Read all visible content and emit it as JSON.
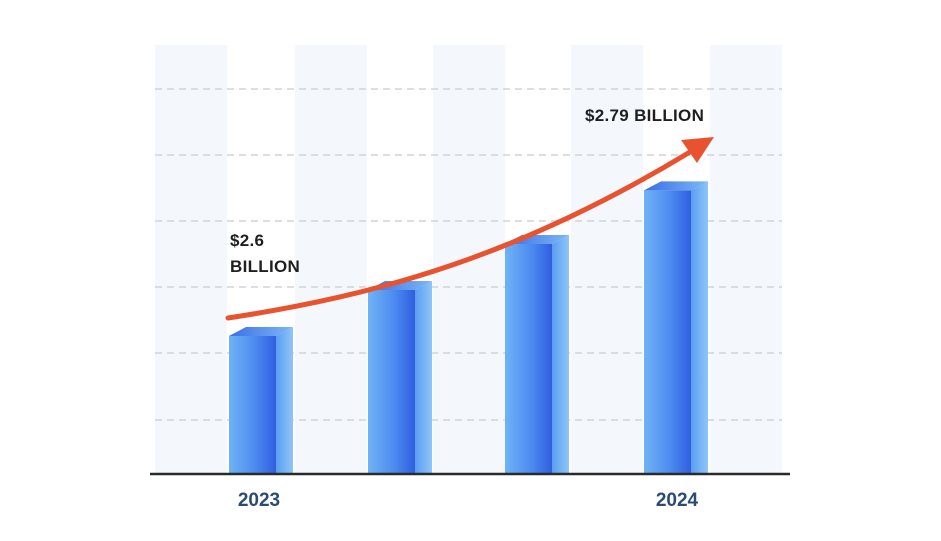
{
  "chart_data": {
    "type": "bar",
    "categories": [
      "2023",
      "",
      "",
      "2024"
    ],
    "values": [
      2.6,
      2.66,
      2.72,
      2.79
    ],
    "unit": "BILLION",
    "annotations": {
      "start_line1": "$2.6",
      "start_line2": "BILLION",
      "end": "$2.79 BILLION"
    },
    "x_tick_labels": {
      "first": "2023",
      "last": "2024"
    },
    "grid": true,
    "trend_arrow": true
  },
  "colors": {
    "bar_light": "#6fb3f5",
    "bar_dark": "#2f5fe0",
    "arrow": "#e8522f",
    "grid": "#d0d4da",
    "column_band": "#f4f8fd",
    "axis": "#2a2a2a",
    "xlabel": "#2b4a74"
  }
}
